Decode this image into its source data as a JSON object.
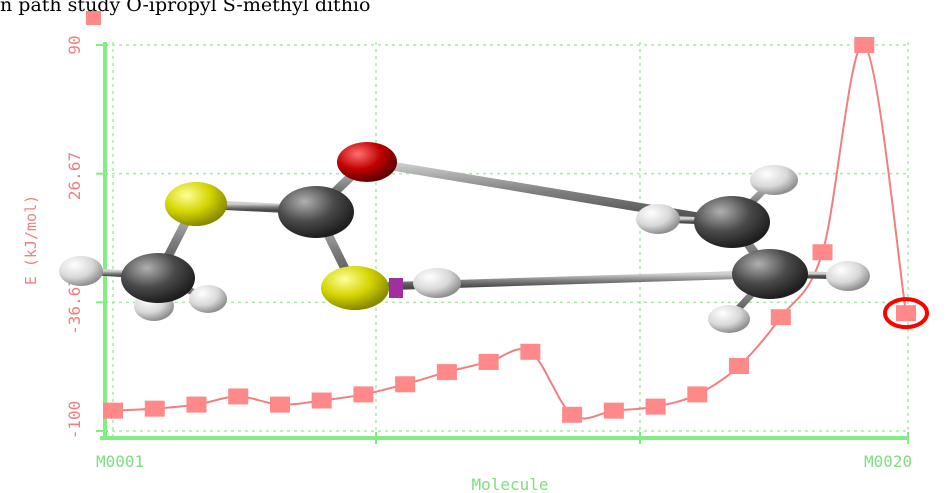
{
  "title": "n path study O-ipropyl S-methyl dithio",
  "chart_data": {
    "type": "line",
    "title": "n path study O-ipropyl S-methyl dithio",
    "xlabel": "Molecule",
    "ylabel": "E (kJ/mol)",
    "x_tick_labels": [
      "M0001",
      "M0020"
    ],
    "y_ticks": [
      90,
      26.67,
      -36.67,
      -100
    ],
    "y_tick_labels": [
      "90",
      "26.67",
      "-36.67",
      "-100"
    ],
    "ylim": [
      -100,
      90
    ],
    "xlim": [
      1,
      20
    ],
    "grid": true,
    "series": [
      {
        "x": [
          1,
          2,
          3,
          4,
          5,
          6,
          7,
          8,
          9,
          10,
          11,
          12,
          13,
          14,
          15,
          16,
          17,
          18,
          19,
          20
        ],
        "values": [
          -90,
          -89,
          -87,
          -83,
          -87,
          -85,
          -82,
          -77,
          -71,
          -66,
          -61,
          -92,
          -90,
          -88,
          -82,
          -68,
          -44,
          -12,
          90,
          -42
        ]
      }
    ],
    "highlighted_point": 20,
    "colors": {
      "series": "#f08080",
      "marker": "#ff8888",
      "axis": "#80ee80",
      "grid": "#a8e8a8",
      "y_label": "#f08080",
      "x_label": "#80dd80",
      "highlight": "#ff0000"
    }
  },
  "molecule": {
    "description_icon": "molecule-3d-icon"
  }
}
